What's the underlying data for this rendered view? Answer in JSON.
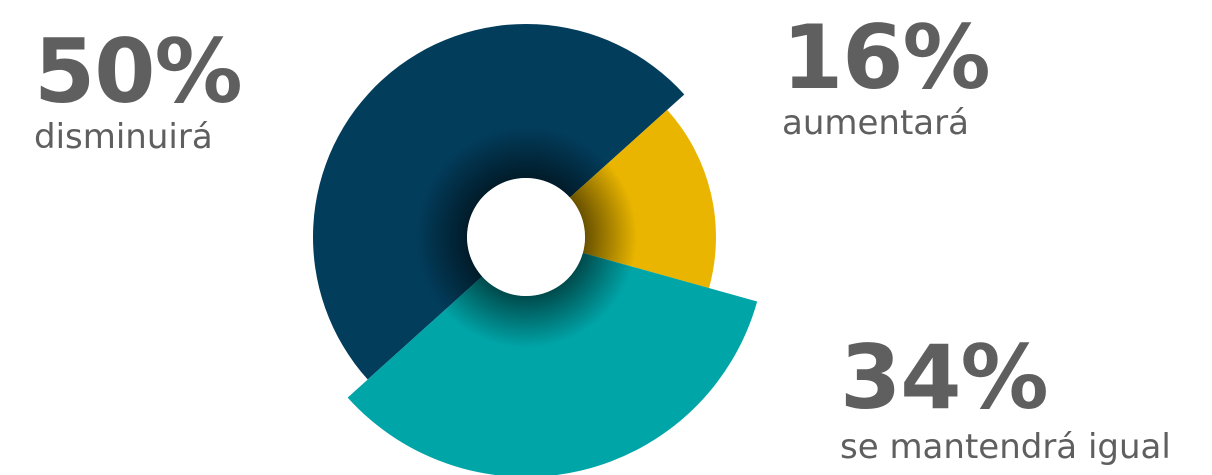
{
  "chart_data": {
    "type": "pie",
    "variant": "exploded-donut",
    "slices": [
      {
        "label": "disminuirá",
        "value": 50,
        "display": "50%",
        "color": "#023d5c"
      },
      {
        "label": "aumentará",
        "value": 16,
        "display": "16%",
        "color": "#e9b500"
      },
      {
        "label": "se mantendrá igual",
        "value": 34,
        "display": "34%",
        "color": "#00a5a8"
      }
    ],
    "center_color": "#ffffff",
    "label_color": "#5f5f5f"
  }
}
